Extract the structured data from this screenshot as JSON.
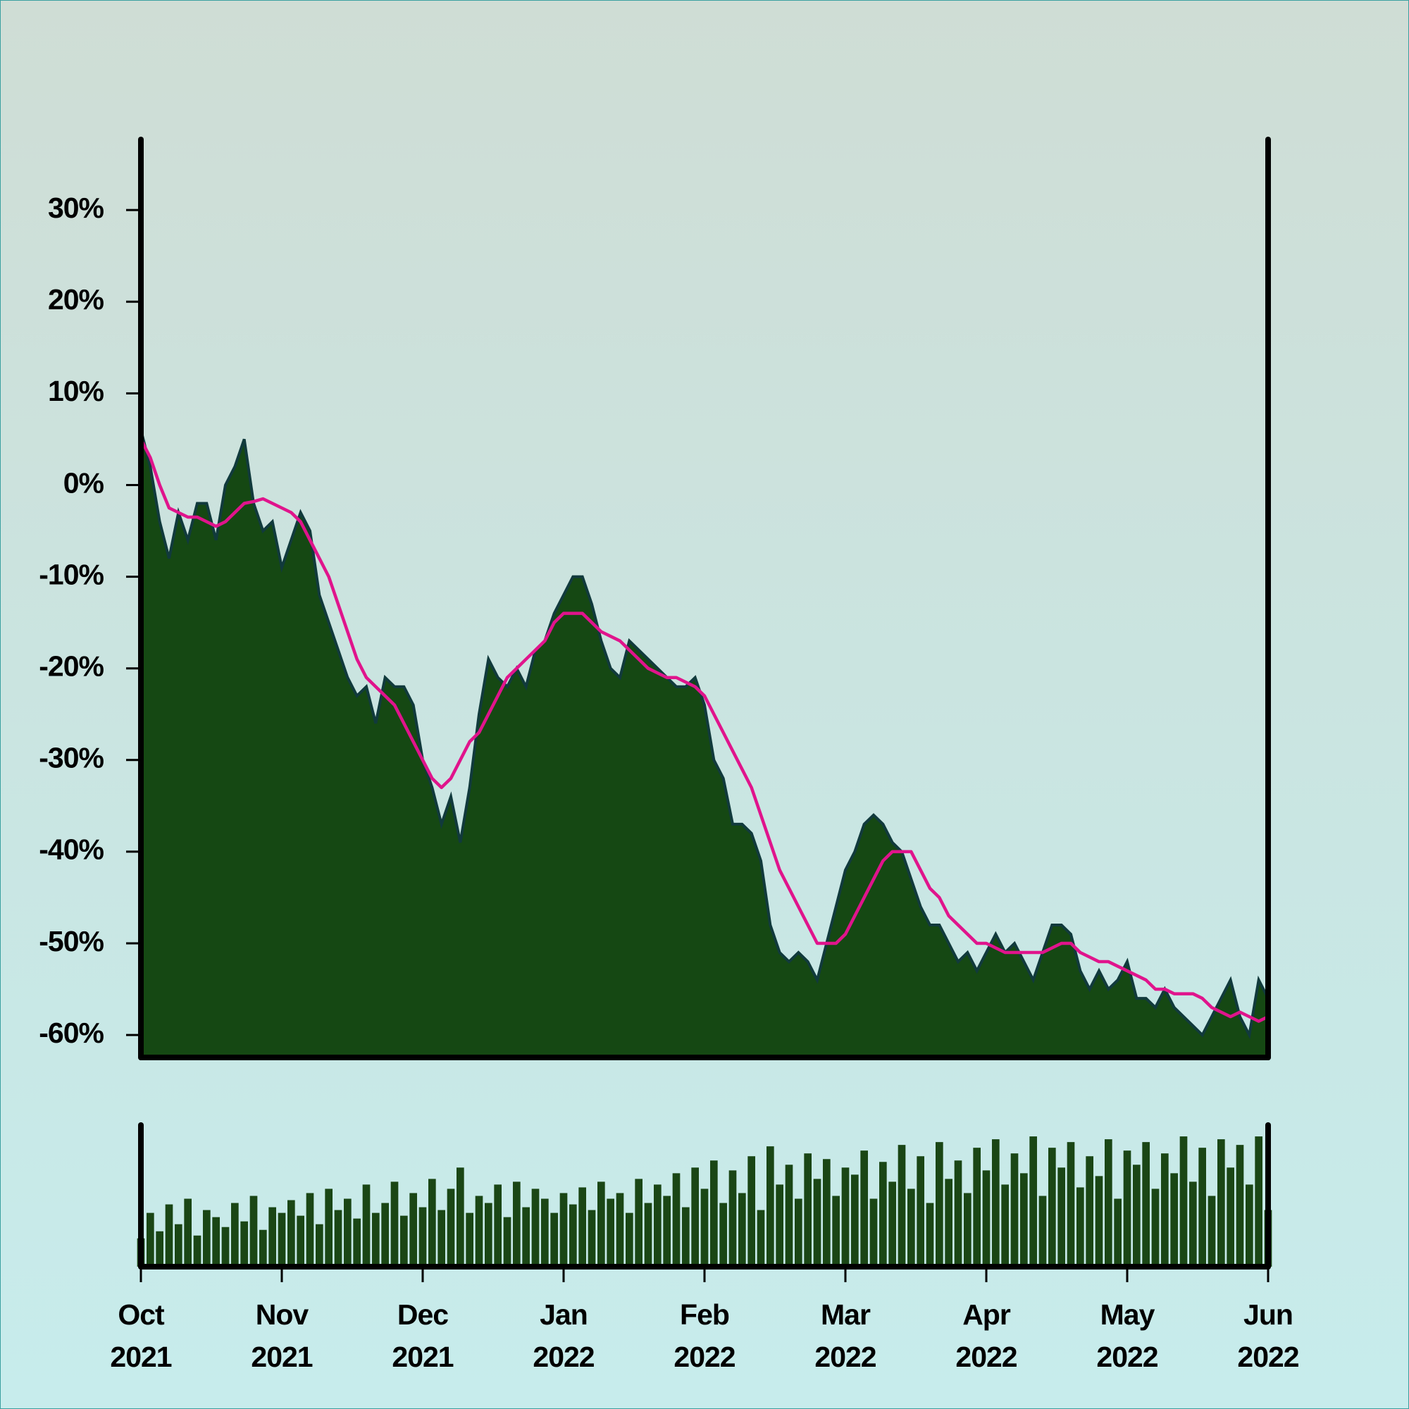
{
  "chart_data": {
    "type": "area",
    "categories": [
      "Oct 2021",
      null,
      null,
      null,
      null,
      null,
      null,
      null,
      null,
      null,
      null,
      null,
      null,
      null,
      null,
      "Nov 2021",
      null,
      null,
      null,
      null,
      null,
      null,
      null,
      null,
      null,
      null,
      null,
      null,
      null,
      null,
      "Dec 2021",
      null,
      null,
      null,
      null,
      null,
      null,
      null,
      null,
      null,
      null,
      null,
      null,
      null,
      null,
      "Jan 2022",
      null,
      null,
      null,
      null,
      null,
      null,
      null,
      null,
      null,
      null,
      null,
      null,
      null,
      null,
      "Feb 2022",
      null,
      null,
      null,
      null,
      null,
      null,
      null,
      null,
      null,
      null,
      null,
      null,
      null,
      null,
      "Mar 2022",
      null,
      null,
      null,
      null,
      null,
      null,
      null,
      null,
      null,
      null,
      null,
      null,
      null,
      null,
      "Apr 2022",
      null,
      null,
      null,
      null,
      null,
      null,
      null,
      null,
      null,
      null,
      null,
      null,
      null,
      null,
      "May 2022",
      null,
      null,
      null,
      null,
      null,
      null,
      null,
      null,
      null,
      null,
      null,
      null,
      null,
      null,
      "Jun 2022"
    ],
    "series": [
      {
        "type": "area",
        "color": "#154813",
        "edge_color": "#113a3c",
        "values": [
          6,
          2,
          -4,
          -8,
          -3,
          -6,
          -2,
          -2,
          -6,
          0,
          2,
          5,
          -2,
          -5,
          -4,
          -9,
          -6,
          -3,
          -5,
          -12,
          -15,
          -18,
          -21,
          -23,
          -22,
          -26,
          -21,
          -22,
          -22,
          -24,
          -30,
          -33,
          -37,
          -34,
          -39,
          -33,
          -25,
          -19,
          -21,
          -22,
          -20,
          -22,
          -18,
          -17,
          -14,
          -12,
          -10,
          -10,
          -13,
          -17,
          -20,
          -21,
          -17,
          -18,
          -19,
          -20,
          -21,
          -22,
          -22,
          -21,
          -24,
          -30,
          -32,
          -37,
          -37,
          -38,
          -41,
          -48,
          -51,
          -52,
          -51,
          -52,
          -54,
          -50,
          -46,
          -42,
          -40,
          -37,
          -36,
          -37,
          -39,
          -40,
          -43,
          -46,
          -48,
          -48,
          -50,
          -52,
          -51,
          -53,
          -51,
          -49,
          -51,
          -50,
          -52,
          -54,
          -51,
          -48,
          -48,
          -49,
          -53,
          -55,
          -53,
          -55,
          -54,
          -52,
          -56,
          -56,
          -57,
          -55,
          -57,
          -58,
          -59,
          -60,
          -58,
          -56,
          -54,
          -58,
          -60,
          -54,
          -56
        ]
      },
      {
        "type": "line",
        "color": "#e0148c",
        "values": [
          5,
          3,
          0,
          -2.5,
          -3,
          -3.5,
          -3.5,
          -4,
          -4.5,
          -4,
          -3,
          -2,
          -1.8,
          -1.5,
          -2,
          -2.5,
          -3,
          -4,
          -6,
          -8,
          -10,
          -13,
          -16,
          -19,
          -21,
          -22,
          -23,
          -24,
          -26,
          -28,
          -30,
          -32,
          -33,
          -32,
          -30,
          -28,
          -27,
          -25,
          -23,
          -21,
          -20,
          -19,
          -18,
          -17,
          -15,
          -14,
          -14,
          -14,
          -15,
          -16,
          -16.5,
          -17,
          -18,
          -19,
          -20,
          -20.5,
          -21,
          -21,
          -21.5,
          -22,
          -23,
          -25,
          -27,
          -29,
          -31,
          -33,
          -36,
          -39,
          -42,
          -44,
          -46,
          -48,
          -50,
          -50,
          -50,
          -49,
          -47,
          -45,
          -43,
          -41,
          -40,
          -40,
          -40,
          -42,
          -44,
          -45,
          -47,
          -48,
          -49,
          -50,
          -50,
          -50.5,
          -51,
          -51,
          -51,
          -51,
          -51,
          -50.5,
          -50,
          -50,
          -51,
          -51.5,
          -52,
          -52,
          -52.5,
          -53,
          -53.5,
          -54,
          -55,
          -55,
          -55.5,
          -55.5,
          -55.5,
          -56,
          -57,
          -57.5,
          -58,
          -57.5,
          -58,
          -58.5,
          -58
        ]
      },
      {
        "type": "bar",
        "axis": "y2",
        "color": "#1a4615",
        "values": [
          20,
          38,
          25,
          44,
          30,
          48,
          22,
          40,
          35,
          28,
          45,
          32,
          50,
          26,
          42,
          38,
          47,
          36,
          52,
          30,
          55,
          40,
          48,
          34,
          58,
          38,
          45,
          60,
          36,
          52,
          42,
          62,
          40,
          55,
          70,
          38,
          50,
          45,
          58,
          35,
          60,
          42,
          55,
          48,
          38,
          52,
          44,
          56,
          40,
          60,
          48,
          52,
          38,
          62,
          45,
          58,
          50,
          66,
          42,
          70,
          55,
          75,
          45,
          68,
          52,
          78,
          40,
          85,
          58,
          72,
          48,
          80,
          62,
          76,
          50,
          70,
          65,
          82,
          48,
          74,
          60,
          86,
          55,
          78,
          45,
          88,
          62,
          75,
          52,
          84,
          68,
          90,
          58,
          80,
          66,
          92,
          50,
          84,
          70,
          88,
          56,
          78,
          64,
          90,
          48,
          82,
          72,
          88,
          55,
          80,
          66,
          92,
          60,
          84,
          50,
          90,
          70,
          86,
          58,
          92,
          40
        ]
      }
    ],
    "ylim": [
      -62.45,
      37.7
    ],
    "yticks": [
      {
        "value": 30,
        "label": "30%"
      },
      {
        "value": 20,
        "label": "20%"
      },
      {
        "value": 10,
        "label": "10%"
      },
      {
        "value": 0,
        "label": "0%"
      },
      {
        "value": -10,
        "label": "-10%"
      },
      {
        "value": -20,
        "label": "-20%"
      },
      {
        "value": -30,
        "label": "-30%"
      },
      {
        "value": -40,
        "label": "-40%"
      },
      {
        "value": -50,
        "label": "-50%"
      },
      {
        "value": -60,
        "label": "-60%"
      }
    ],
    "y2lim": [
      0,
      100
    ]
  }
}
